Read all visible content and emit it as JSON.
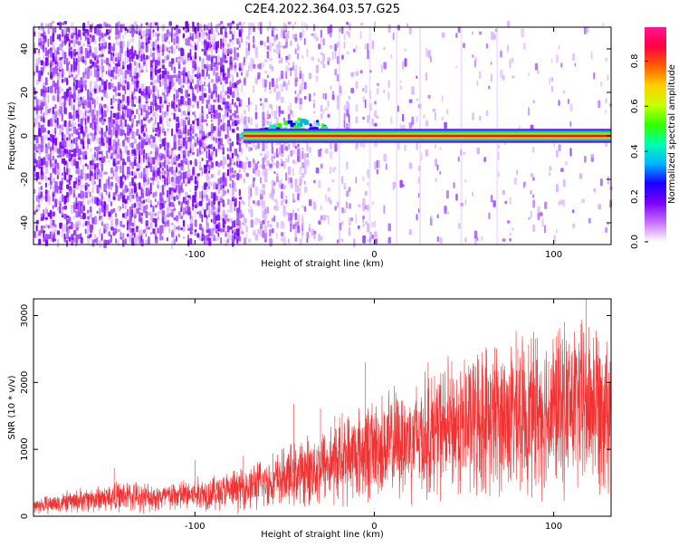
{
  "title": "C2E4.2022.364.03.57.G25",
  "chart_data": [
    {
      "type": "heatmap",
      "xlabel": "Height of straight line (km)",
      "ylabel": "Frequency (Hz)",
      "xlim": [
        -190,
        132
      ],
      "ylim": [
        -50,
        50
      ],
      "x_ticks": [
        -100,
        0,
        100
      ],
      "y_ticks": [
        -40,
        -20,
        0,
        20,
        40
      ],
      "colorbar": {
        "label": "Normalized spectral amplitude",
        "range": [
          0,
          0.95
        ],
        "ticks": [
          0.0,
          0.2,
          0.4,
          0.6,
          0.8
        ],
        "colors": [
          "#ffffff",
          "#c86eff",
          "#7a00ff",
          "#1a00ff",
          "#00b4ff",
          "#00ffb0",
          "#30ff00",
          "#c8ff00",
          "#ffd000",
          "#ff6000",
          "#ff0040",
          "#ff1493"
        ]
      },
      "features": {
        "strong_line": {
          "freq_hz": 0,
          "x_start": -75,
          "x_end": 132,
          "amplitude": 0.9
        },
        "noise_region": {
          "x_start": -190,
          "x_end": -75,
          "amplitude": 0.1
        }
      }
    },
    {
      "type": "line",
      "xlabel": "Height of straight line (km)",
      "ylabel": "SNR (10 * v/v)",
      "xlim": [
        -190,
        132
      ],
      "ylim": [
        0,
        3250
      ],
      "x_ticks": [
        -100,
        0,
        100
      ],
      "y_ticks": [
        0,
        1000,
        2000,
        3000
      ],
      "color": "#f03232",
      "trend": [
        [
          -190,
          150
        ],
        [
          -160,
          250
        ],
        [
          -140,
          300
        ],
        [
          -120,
          280
        ],
        [
          -100,
          330
        ],
        [
          -80,
          380
        ],
        [
          -60,
          500
        ],
        [
          -40,
          650
        ],
        [
          -20,
          850
        ],
        [
          0,
          1000
        ],
        [
          20,
          1150
        ],
        [
          40,
          1300
        ],
        [
          60,
          1450
        ],
        [
          80,
          1500
        ],
        [
          100,
          1600
        ],
        [
          120,
          1700
        ],
        [
          132,
          1750
        ]
      ],
      "spikes": [
        [
          -145,
          720
        ],
        [
          -100,
          840
        ],
        [
          -73,
          900
        ],
        [
          -45,
          1680
        ],
        [
          -30,
          1610
        ],
        [
          -22,
          1500
        ],
        [
          -5,
          2300
        ],
        [
          30,
          2300
        ],
        [
          60,
          2450
        ],
        [
          80,
          2500
        ],
        [
          90,
          2650
        ],
        [
          105,
          2480
        ],
        [
          118,
          3250
        ],
        [
          125,
          2620
        ]
      ]
    }
  ]
}
